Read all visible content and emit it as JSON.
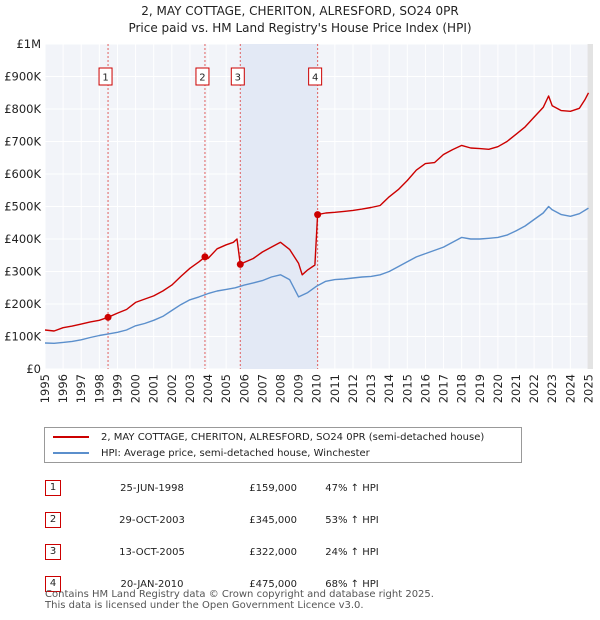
{
  "chart_data": {
    "type": "line",
    "title": "2, MAY COTTAGE, CHERITON, ALRESFORD, SO24 0PR",
    "subtitle": "Price paid vs. HM Land Registry's House Price Index (HPI)",
    "xlim": [
      1995,
      2025.25
    ],
    "ylim": [
      0,
      1000000
    ],
    "x_ticks": [
      1995,
      1996,
      1997,
      1998,
      1999,
      2000,
      2001,
      2002,
      2003,
      2004,
      2005,
      2006,
      2007,
      2008,
      2009,
      2010,
      2011,
      2012,
      2013,
      2014,
      2015,
      2016,
      2017,
      2018,
      2019,
      2020,
      2021,
      2022,
      2023,
      2024,
      2025
    ],
    "y_ticks": [
      {
        "value": 0,
        "label": "£0"
      },
      {
        "value": 100000,
        "label": "£100K"
      },
      {
        "value": 200000,
        "label": "£200K"
      },
      {
        "value": 300000,
        "label": "£300K"
      },
      {
        "value": 400000,
        "label": "£400K"
      },
      {
        "value": 500000,
        "label": "£500K"
      },
      {
        "value": 600000,
        "label": "£600K"
      },
      {
        "value": 700000,
        "label": "£700K"
      },
      {
        "value": 800000,
        "label": "£800K"
      },
      {
        "value": 900000,
        "label": "£900K"
      },
      {
        "value": 1000000,
        "label": "£1M"
      }
    ],
    "grid": true,
    "series": [
      {
        "name": "2, MAY COTTAGE, CHERITON, ALRESFORD, SO24 0PR (semi-detached house)",
        "color": "#cc0000",
        "x": [
          1995.0,
          1995.5,
          1996.0,
          1996.5,
          1997.0,
          1997.5,
          1998.0,
          1998.48,
          1999.0,
          1999.5,
          2000.0,
          2000.5,
          2001.0,
          2001.5,
          2002.0,
          2002.5,
          2003.0,
          2003.5,
          2003.83,
          2004.0,
          2004.5,
          2005.0,
          2005.4,
          2005.6,
          2005.78,
          2006.0,
          2006.5,
          2007.0,
          2007.5,
          2008.0,
          2008.5,
          2009.0,
          2009.2,
          2009.5,
          2009.9,
          2010.05,
          2010.5,
          2011.0,
          2011.5,
          2012.0,
          2012.5,
          2013.0,
          2013.5,
          2014.0,
          2014.5,
          2015.0,
          2015.5,
          2016.0,
          2016.5,
          2017.0,
          2017.5,
          2018.0,
          2018.5,
          2019.0,
          2019.5,
          2020.0,
          2020.5,
          2021.0,
          2021.5,
          2022.0,
          2022.5,
          2022.8,
          2023.0,
          2023.5,
          2024.0,
          2024.5,
          2024.8,
          2025.0
        ],
        "values": [
          120000,
          117000,
          127000,
          132000,
          138000,
          145000,
          150000,
          159000,
          172000,
          183000,
          205000,
          215000,
          225000,
          240000,
          258000,
          285000,
          310000,
          330000,
          345000,
          340000,
          370000,
          382000,
          390000,
          400000,
          322000,
          328000,
          340000,
          360000,
          375000,
          390000,
          368000,
          325000,
          290000,
          305000,
          320000,
          475000,
          480000,
          482000,
          485000,
          488000,
          492000,
          497000,
          503000,
          530000,
          552000,
          580000,
          612000,
          632000,
          635000,
          660000,
          675000,
          688000,
          680000,
          678000,
          676000,
          684000,
          700000,
          722000,
          745000,
          775000,
          805000,
          840000,
          810000,
          795000,
          793000,
          802000,
          828000,
          850000
        ]
      },
      {
        "name": "HPI: Average price, semi-detached house, Winchester",
        "color": "#5b8fcc",
        "x": [
          1995.0,
          1995.5,
          1996.0,
          1996.5,
          1997.0,
          1997.5,
          1998.0,
          1998.5,
          1999.0,
          1999.5,
          2000.0,
          2000.5,
          2001.0,
          2001.5,
          2002.0,
          2002.5,
          2003.0,
          2003.5,
          2004.0,
          2004.5,
          2005.0,
          2005.5,
          2006.0,
          2006.5,
          2007.0,
          2007.5,
          2008.0,
          2008.5,
          2009.0,
          2009.5,
          2010.0,
          2010.5,
          2011.0,
          2011.5,
          2012.0,
          2012.5,
          2013.0,
          2013.5,
          2014.0,
          2014.5,
          2015.0,
          2015.5,
          2016.0,
          2016.5,
          2017.0,
          2017.5,
          2018.0,
          2018.5,
          2019.0,
          2019.5,
          2020.0,
          2020.5,
          2021.0,
          2021.5,
          2022.0,
          2022.5,
          2022.8,
          2023.0,
          2023.5,
          2024.0,
          2024.5,
          2025.0
        ],
        "values": [
          80000,
          79000,
          82000,
          85000,
          90000,
          97000,
          103000,
          108000,
          113000,
          120000,
          133000,
          140000,
          150000,
          162000,
          180000,
          198000,
          213000,
          222000,
          232000,
          240000,
          245000,
          250000,
          258000,
          265000,
          272000,
          283000,
          290000,
          275000,
          222000,
          235000,
          255000,
          270000,
          275000,
          277000,
          280000,
          283000,
          285000,
          290000,
          300000,
          315000,
          330000,
          345000,
          355000,
          365000,
          375000,
          390000,
          405000,
          400000,
          400000,
          402000,
          405000,
          412000,
          425000,
          440000,
          460000,
          480000,
          500000,
          490000,
          475000,
          470000,
          478000,
          495000
        ]
      }
    ],
    "sales": [
      {
        "num": "1",
        "x": 1998.48,
        "value": 159000
      },
      {
        "num": "2",
        "x": 2003.83,
        "value": 345000
      },
      {
        "num": "3",
        "x": 2005.78,
        "value": 322000
      },
      {
        "num": "4",
        "x": 2010.05,
        "value": 475000
      }
    ]
  },
  "legend": {
    "property": "2, MAY COTTAGE, CHERITON, ALRESFORD, SO24 0PR (semi-detached house)",
    "hpi": "HPI: Average price, semi-detached house, Winchester"
  },
  "table": [
    {
      "num": "1",
      "date": "25-JUN-1998",
      "price": "£159,000",
      "hpi": "47% ↑ HPI"
    },
    {
      "num": "2",
      "date": "29-OCT-2003",
      "price": "£345,000",
      "hpi": "53% ↑ HPI"
    },
    {
      "num": "3",
      "date": "13-OCT-2005",
      "price": "£322,000",
      "hpi": "24% ↑ HPI"
    },
    {
      "num": "4",
      "date": "20-JAN-2010",
      "price": "£475,000",
      "hpi": "68% ↑ HPI"
    }
  ],
  "footer": {
    "line1": "Contains HM Land Registry data © Crown copyright and database right 2025.",
    "line2": "This data is licensed under the Open Government Licence v3.0."
  }
}
